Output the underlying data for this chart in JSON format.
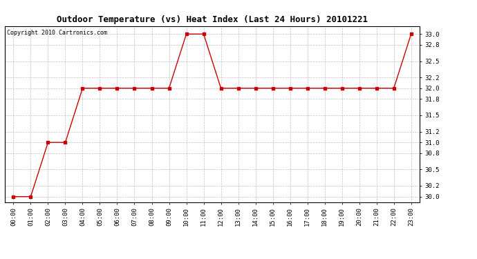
{
  "title": "Outdoor Temperature (vs) Heat Index (Last 24 Hours) 20101221",
  "copyright_text": "Copyright 2010 Cartronics.com",
  "x_labels": [
    "00:00",
    "01:00",
    "02:00",
    "03:00",
    "04:00",
    "05:00",
    "06:00",
    "07:00",
    "08:00",
    "09:00",
    "10:00",
    "11:00",
    "12:00",
    "13:00",
    "14:00",
    "15:00",
    "16:00",
    "17:00",
    "18:00",
    "19:00",
    "20:00",
    "21:00",
    "22:00",
    "23:00"
  ],
  "y_values": [
    30.0,
    30.0,
    31.0,
    31.0,
    32.0,
    32.0,
    32.0,
    32.0,
    32.0,
    32.0,
    33.0,
    33.0,
    32.0,
    32.0,
    32.0,
    32.0,
    32.0,
    32.0,
    32.0,
    32.0,
    32.0,
    32.0,
    32.0,
    33.0
  ],
  "line_color": "#cc0000",
  "marker": "s",
  "marker_size": 2.5,
  "ylim": [
    29.9,
    33.15
  ],
  "ytick_values": [
    30.0,
    30.2,
    30.5,
    30.8,
    31.0,
    31.2,
    31.5,
    31.8,
    32.0,
    32.2,
    32.5,
    32.8,
    33.0
  ],
  "background_color": "#ffffff",
  "grid_color": "#bbbbbb",
  "title_fontsize": 9,
  "copyright_fontsize": 6,
  "tick_fontsize": 6.5
}
